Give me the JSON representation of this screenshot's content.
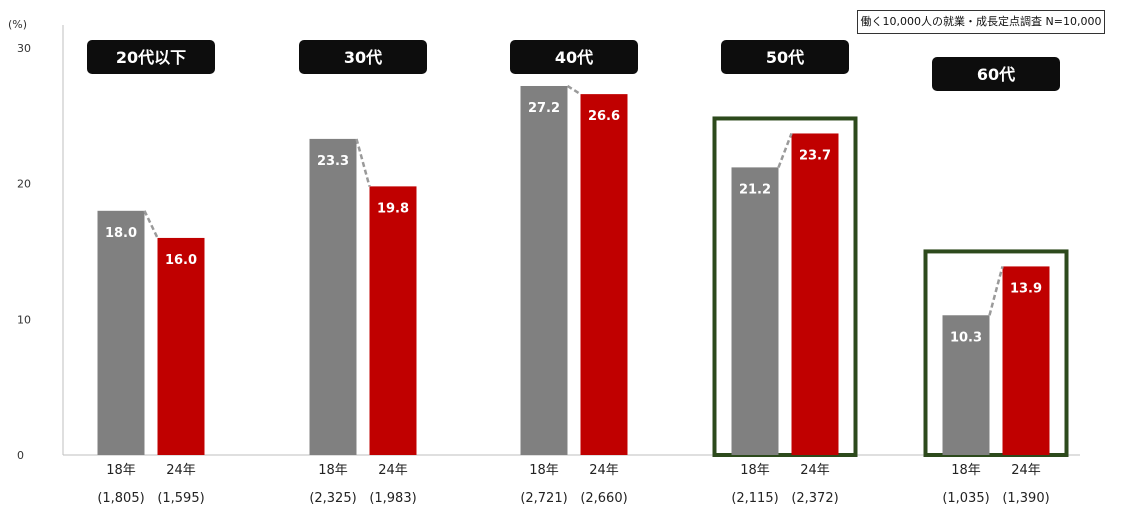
{
  "source_note": "働く10,000人の就業・成長定点調査 N=10,000",
  "colors": {
    "gray_bar": "#808080",
    "red_bar": "#c00000",
    "highlight_border": "#2d4a1c",
    "header_bg": "#0d0d0d"
  },
  "chart_data": {
    "type": "bar",
    "ylabel": "(%)",
    "ylim": [
      0,
      30
    ],
    "yticks": [
      "0",
      "10",
      "20",
      "30"
    ],
    "grid": false,
    "groups": [
      {
        "name": "20代以下",
        "highlighted": false,
        "bars": [
          {
            "label": "18年",
            "n": "(1,805)",
            "value": 18.0,
            "value_label": "18.0"
          },
          {
            "label": "24年",
            "n": "(1,595)",
            "value": 16.0,
            "value_label": "16.0"
          }
        ]
      },
      {
        "name": "30代",
        "highlighted": false,
        "bars": [
          {
            "label": "18年",
            "n": "(2,325)",
            "value": 23.3,
            "value_label": "23.3"
          },
          {
            "label": "24年",
            "n": "(1,983)",
            "value": 19.8,
            "value_label": "19.8"
          }
        ]
      },
      {
        "name": "40代",
        "highlighted": false,
        "bars": [
          {
            "label": "18年",
            "n": "(2,721)",
            "value": 27.2,
            "value_label": "27.2"
          },
          {
            "label": "24年",
            "n": "(2,660)",
            "value": 26.6,
            "value_label": "26.6"
          }
        ]
      },
      {
        "name": "50代",
        "highlighted": true,
        "bars": [
          {
            "label": "18年",
            "n": "(2,115)",
            "value": 21.2,
            "value_label": "21.2"
          },
          {
            "label": "24年",
            "n": "(2,372)",
            "value": 23.7,
            "value_label": "23.7"
          }
        ]
      },
      {
        "name": "60代",
        "highlighted": true,
        "bars": [
          {
            "label": "18年",
            "n": "(1,035)",
            "value": 10.3,
            "value_label": "10.3"
          },
          {
            "label": "24年",
            "n": "(1,390)",
            "value": 13.9,
            "value_label": "13.9"
          }
        ]
      }
    ]
  }
}
